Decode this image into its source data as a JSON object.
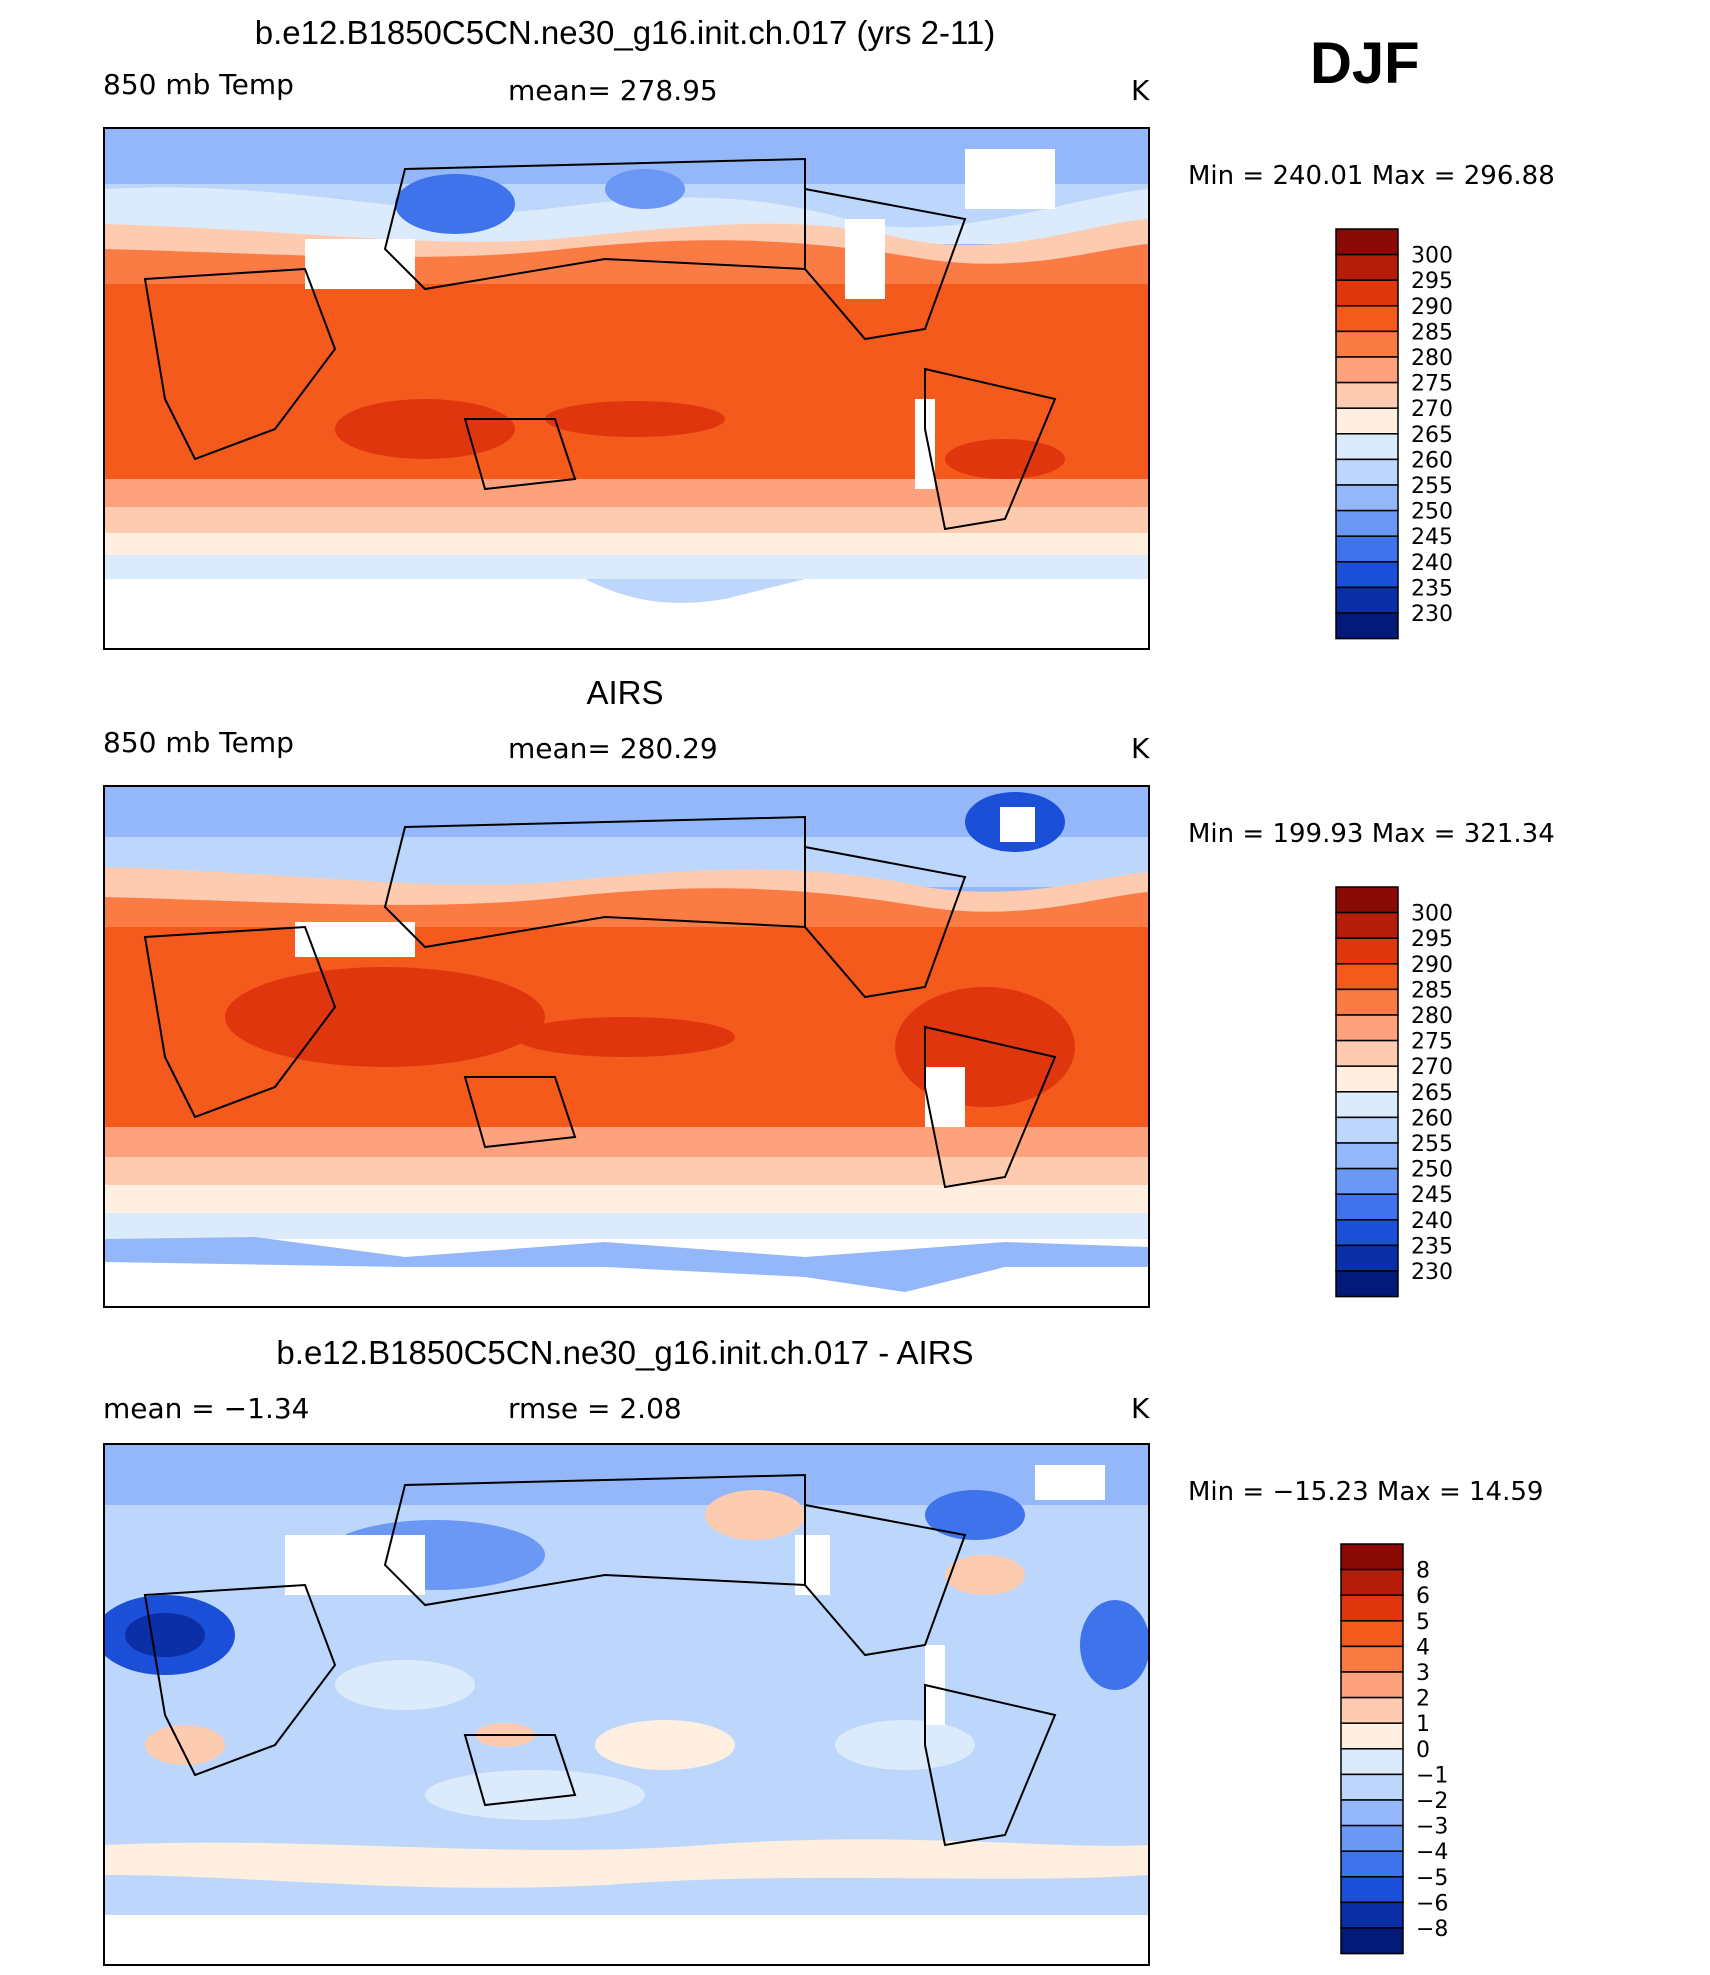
{
  "season": "DJF",
  "chart_data": [
    {
      "type": "heatmap",
      "title": "b.e12.B1850C5CN.ne30_g16.init.ch.017 (yrs 2-11)",
      "left_label": "850 mb Temp",
      "center_label": "mean=  278.95",
      "units": "K",
      "min_max": "Min  =  240.01  Max  =  296.88",
      "mean": 278.95,
      "min": 240.01,
      "max": 296.88,
      "colorbar_labels": [
        "300",
        "295",
        "290",
        "285",
        "280",
        "275",
        "270",
        "265",
        "260",
        "255",
        "250",
        "245",
        "240",
        "235",
        "230"
      ],
      "colorbar_colors": [
        "#8a0a05",
        "#b51d0b",
        "#e0360e",
        "#f45a1c",
        "#fb7b45",
        "#fda27c",
        "#fdcbb0",
        "#feefe0",
        "#dcebfb",
        "#bdd6fb",
        "#93b7f8",
        "#6a98f4",
        "#3f73ec",
        "#1b4fd8",
        "#0a2fa6",
        "#041a78"
      ]
    },
    {
      "type": "heatmap",
      "title": "AIRS",
      "left_label": "850 mb Temp",
      "center_label": "mean=  280.29",
      "units": "K",
      "min_max": "Min  =  199.93  Max  =  321.34",
      "mean": 280.29,
      "min": 199.93,
      "max": 321.34,
      "colorbar_labels": [
        "300",
        "295",
        "290",
        "285",
        "280",
        "275",
        "270",
        "265",
        "260",
        "255",
        "250",
        "245",
        "240",
        "235",
        "230"
      ],
      "colorbar_colors": [
        "#8a0a05",
        "#b51d0b",
        "#e0360e",
        "#f45a1c",
        "#fb7b45",
        "#fda27c",
        "#fdcbb0",
        "#feefe0",
        "#dcebfb",
        "#bdd6fb",
        "#93b7f8",
        "#6a98f4",
        "#3f73ec",
        "#1b4fd8",
        "#0a2fa6",
        "#041a78"
      ]
    },
    {
      "type": "heatmap",
      "title": "b.e12.B1850C5CN.ne30_g16.init.ch.017 - AIRS",
      "left_label": "mean  =    −1.34",
      "center_label": "rmse  =     2.08",
      "units": "K",
      "min_max": "Min  =  −15.23  Max  =    14.59",
      "mean": -1.34,
      "rmse": 2.08,
      "min": -15.23,
      "max": 14.59,
      "colorbar_labels": [
        "8",
        "6",
        "5",
        "4",
        "3",
        "2",
        "1",
        "0",
        "−1",
        "−2",
        "−3",
        "−4",
        "−5",
        "−6",
        "−8"
      ],
      "colorbar_colors": [
        "#8a0a05",
        "#b51d0b",
        "#e0360e",
        "#f45a1c",
        "#fb7b45",
        "#fda27c",
        "#fdcbb0",
        "#feefe0",
        "#dcebfb",
        "#bdd6fb",
        "#93b7f8",
        "#6a98f4",
        "#3f73ec",
        "#1b4fd8",
        "#0a2fa6",
        "#041a78"
      ]
    }
  ]
}
